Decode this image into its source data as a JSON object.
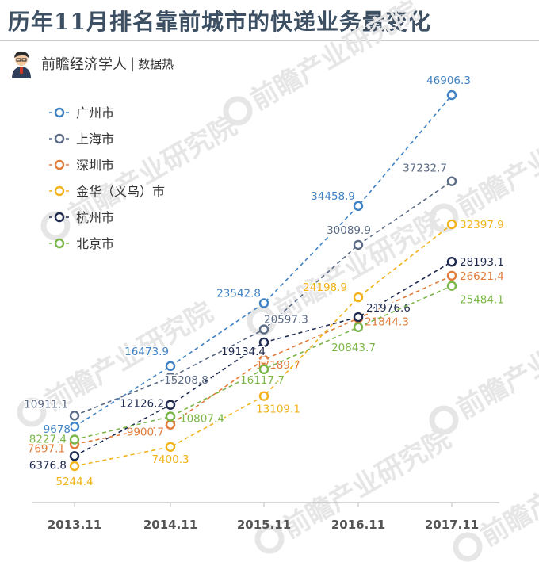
{
  "header": {
    "title": "历年11月排名靠前城市的快递业务量变化",
    "brand": "前瞻经济学人",
    "separator": "|",
    "subtitle": "数据热"
  },
  "watermark": "前瞻产业研究院",
  "chart_data": {
    "type": "line",
    "categories": [
      "2013.11",
      "2014.11",
      "2015.11",
      "2016.11",
      "2017.11"
    ],
    "ylim": [
      3000,
      49000
    ],
    "grid": false,
    "legend_position": "top-left",
    "series": [
      {
        "name": "广州市",
        "color": "#3f82c4",
        "values": [
          9678,
          16473.9,
          23542.8,
          34458.9,
          46906.3
        ],
        "labels": [
          "9678",
          "16473.9",
          "23542.8",
          "34458.9",
          "46906.3"
        ]
      },
      {
        "name": "上海市",
        "color": "#5a6a85",
        "values": [
          10911.1,
          15208.8,
          20597.3,
          30089.9,
          37232.7
        ],
        "labels": [
          "10911.1",
          "15208.8",
          "20597.3",
          "30089.9",
          "37232.7"
        ]
      },
      {
        "name": "深圳市",
        "color": "#e07b39",
        "values": [
          7697.1,
          9900.7,
          17189.7,
          21844.3,
          26621.4
        ],
        "labels": [
          "7697.1",
          "9900.7",
          "17189.7",
          "21844.3",
          "26621.4"
        ]
      },
      {
        "name": "金华（义乌）市",
        "color": "#f2b31a",
        "values": [
          5244.4,
          7400.3,
          13109.1,
          24198.9,
          32397.9
        ],
        "labels": [
          "5244.4",
          "7400.3",
          "13109.1",
          "24198.9",
          "32397.9"
        ]
      },
      {
        "name": "杭州市",
        "color": "#1e2a4f",
        "values": [
          6376.8,
          12126.2,
          19134.4,
          21976.6,
          28193.1
        ],
        "labels": [
          "6376.8",
          "12126.2",
          "19134.4",
          "21976.6",
          "28193.1"
        ]
      },
      {
        "name": "北京市",
        "color": "#7ab648",
        "values": [
          8227.4,
          10807.4,
          16117.7,
          20843.7,
          25484.1
        ],
        "labels": [
          "8227.4",
          "10807.4",
          "16117.7",
          "20843.7",
          "25484.1"
        ]
      }
    ]
  }
}
